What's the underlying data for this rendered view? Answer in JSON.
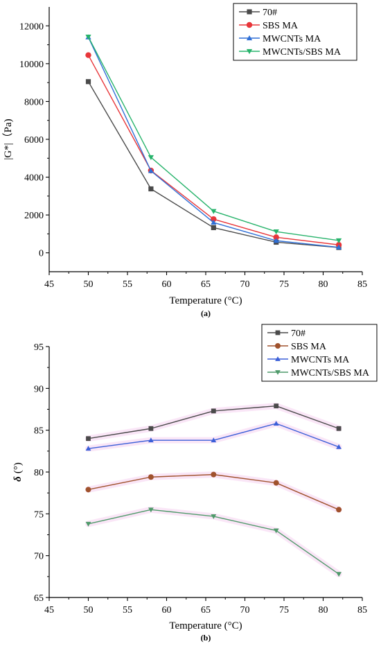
{
  "chart_data": [
    {
      "type": "line",
      "panel_label": "(a)",
      "xlabel": "Temperature (°C)",
      "ylabel": "|G*|（Pa)",
      "xlim": [
        45,
        85
      ],
      "ylim": [
        -1000,
        13000
      ],
      "xticks": [
        45,
        50,
        55,
        60,
        65,
        70,
        75,
        80,
        85
      ],
      "yticks": [
        0,
        2000,
        4000,
        6000,
        8000,
        10000,
        12000
      ],
      "x": [
        50,
        58,
        66,
        74,
        82
      ],
      "legend_position": "top-right",
      "grid": false,
      "series": [
        {
          "name": "70#",
          "marker": "square",
          "color": "#4a4a4a",
          "values": [
            9050,
            3380,
            1330,
            560,
            280
          ]
        },
        {
          "name": "SBS MA",
          "marker": "circle",
          "color": "#e8363a",
          "values": [
            10450,
            4350,
            1780,
            820,
            420
          ]
        },
        {
          "name": "MWCNTs MA",
          "marker": "triangle-up",
          "color": "#2f6fd6",
          "values": [
            11400,
            4330,
            1600,
            640,
            290
          ]
        },
        {
          "name": "MWCNTs/SBS MA",
          "marker": "triangle-down",
          "color": "#27b36b",
          "values": [
            11420,
            5050,
            2200,
            1120,
            650
          ]
        }
      ]
    },
    {
      "type": "line",
      "panel_label": "(b)",
      "xlabel": "Temperature (°C)",
      "ylabel_symbol": "δ",
      "ylabel_unit": "(°)",
      "xlim": [
        45,
        85
      ],
      "ylim": [
        65,
        95
      ],
      "xticks": [
        45,
        50,
        55,
        60,
        65,
        70,
        75,
        80,
        85
      ],
      "yticks": [
        65,
        70,
        75,
        80,
        85,
        90,
        95
      ],
      "x": [
        50,
        58,
        66,
        74,
        82
      ],
      "legend_position": "top-right",
      "grid": false,
      "series": [
        {
          "name": "70#",
          "marker": "square",
          "color": "#4a4a4a",
          "values": [
            84.0,
            85.2,
            87.3,
            87.9,
            85.2
          ]
        },
        {
          "name": "SBS MA",
          "marker": "circle",
          "color": "#a0522d",
          "values": [
            77.9,
            79.4,
            79.7,
            78.7,
            75.5
          ]
        },
        {
          "name": "MWCNTs MA",
          "marker": "triangle-up",
          "color": "#3b5fd8",
          "values": [
            82.8,
            83.8,
            83.8,
            85.8,
            83.0
          ]
        },
        {
          "name": "MWCNTs/SBS MA",
          "marker": "triangle-down",
          "color": "#4f9a6a",
          "values": [
            73.8,
            75.5,
            74.7,
            73.0,
            67.8
          ]
        }
      ]
    }
  ]
}
